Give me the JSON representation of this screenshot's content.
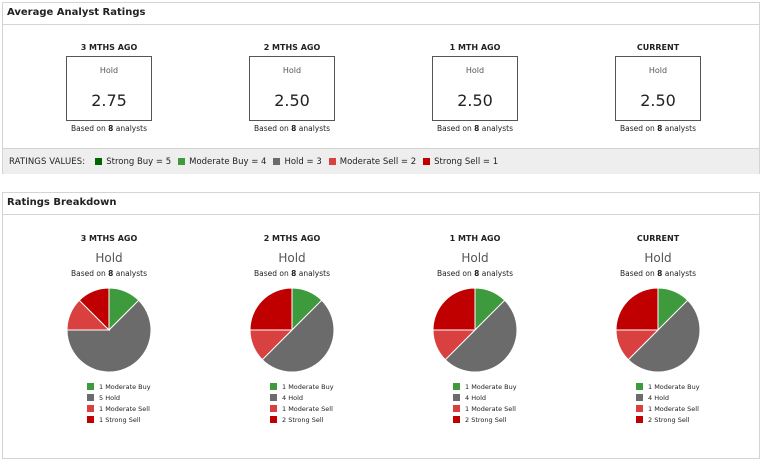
{
  "average": {
    "header": "Average Analyst Ratings",
    "periods": [
      {
        "title": "3 MTHS AGO",
        "label": "Hold",
        "value": "2.75",
        "based_pre": "Based on",
        "count": "8",
        "based_post": "analysts"
      },
      {
        "title": "2 MTHS AGO",
        "label": "Hold",
        "value": "2.50",
        "based_pre": "Based on",
        "count": "8",
        "based_post": "analysts"
      },
      {
        "title": "1 MTH AGO",
        "label": "Hold",
        "value": "2.50",
        "based_pre": "Based on",
        "count": "8",
        "based_post": "analysts"
      },
      {
        "title": "CURRENT",
        "label": "Hold",
        "value": "2.50",
        "based_pre": "Based on",
        "count": "8",
        "based_post": "analysts"
      }
    ]
  },
  "ratings_values": {
    "title": "RATINGS VALUES:",
    "items": [
      {
        "label": "Strong Buy = 5",
        "color": "#006400"
      },
      {
        "label": "Moderate Buy = 4",
        "color": "#3d9a3d"
      },
      {
        "label": "Hold = 3",
        "color": "#6b6b6b"
      },
      {
        "label": "Moderate Sell = 2",
        "color": "#d94141"
      },
      {
        "label": "Strong Sell = 1",
        "color": "#c00000"
      }
    ]
  },
  "breakdown": {
    "header": "Ratings Breakdown",
    "periods": [
      {
        "title": "3 MTHS AGO",
        "rating": "Hold",
        "based_pre": "Based on",
        "count": "8",
        "based_post": "analysts",
        "legend": [
          "1 Moderate Buy",
          "5 Hold",
          "1 Moderate Sell",
          "1 Strong Sell"
        ]
      },
      {
        "title": "2 MTHS AGO",
        "rating": "Hold",
        "based_pre": "Based on",
        "count": "8",
        "based_post": "analysts",
        "legend": [
          "1 Moderate Buy",
          "4 Hold",
          "1 Moderate Sell",
          "2 Strong Sell"
        ]
      },
      {
        "title": "1 MTH AGO",
        "rating": "Hold",
        "based_pre": "Based on",
        "count": "8",
        "based_post": "analysts",
        "legend": [
          "1 Moderate Buy",
          "4 Hold",
          "1 Moderate Sell",
          "2 Strong Sell"
        ]
      },
      {
        "title": "CURRENT",
        "rating": "Hold",
        "based_pre": "Based on",
        "count": "8",
        "based_post": "analysts",
        "legend": [
          "1 Moderate Buy",
          "4 Hold",
          "1 Moderate Sell",
          "2 Strong Sell"
        ]
      }
    ]
  },
  "chart_data": [
    {
      "type": "pie",
      "categories": [
        "Moderate Buy",
        "Hold",
        "Moderate Sell",
        "Strong Sell"
      ],
      "values": [
        1,
        5,
        1,
        1
      ],
      "colors": [
        "#3d9a3d",
        "#6b6b6b",
        "#d94141",
        "#c00000"
      ]
    },
    {
      "type": "pie",
      "categories": [
        "Moderate Buy",
        "Hold",
        "Moderate Sell",
        "Strong Sell"
      ],
      "values": [
        1,
        4,
        1,
        2
      ],
      "colors": [
        "#3d9a3d",
        "#6b6b6b",
        "#d94141",
        "#c00000"
      ]
    },
    {
      "type": "pie",
      "categories": [
        "Moderate Buy",
        "Hold",
        "Moderate Sell",
        "Strong Sell"
      ],
      "values": [
        1,
        4,
        1,
        2
      ],
      "colors": [
        "#3d9a3d",
        "#6b6b6b",
        "#d94141",
        "#c00000"
      ]
    },
    {
      "type": "pie",
      "categories": [
        "Moderate Buy",
        "Hold",
        "Moderate Sell",
        "Strong Sell"
      ],
      "values": [
        1,
        4,
        1,
        2
      ],
      "colors": [
        "#3d9a3d",
        "#6b6b6b",
        "#d94141",
        "#c00000"
      ]
    }
  ]
}
